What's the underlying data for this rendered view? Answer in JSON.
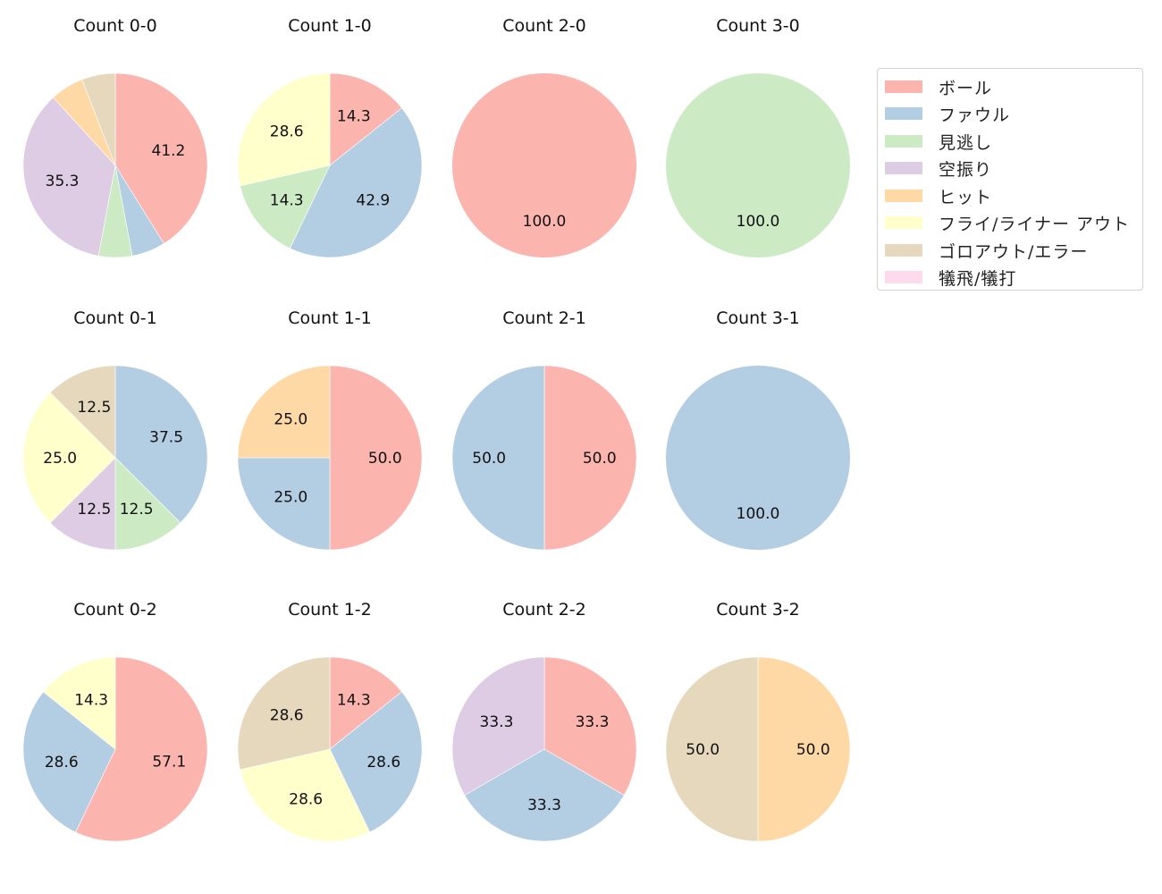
{
  "chart_data": {
    "type": "pie",
    "title": "",
    "legend": {
      "position": "upper right",
      "entries": [
        "ボール",
        "ファウル",
        "見逃し",
        "空振り",
        "ヒット",
        "フライ/ライナー アウト",
        "ゴロアウト/エラー",
        "犠飛/犠打"
      ],
      "colors": [
        "#fbb4ae",
        "#b3cde3",
        "#ccebc5",
        "#decbe4",
        "#fed9a6",
        "#ffffcc",
        "#e5d8bd",
        "#fddaec"
      ]
    },
    "categories": [
      "ボール",
      "ファウル",
      "見逃し",
      "空振り",
      "ヒット",
      "フライ/ライナー アウト",
      "ゴロアウト/エラー",
      "犠飛/犠打"
    ],
    "subplots": [
      {
        "title": "Count 0-0",
        "values": [
          41.2,
          5.9,
          5.9,
          35.3,
          5.9,
          0,
          5.9,
          0
        ],
        "labels": [
          "41.2",
          "",
          "",
          "35.3",
          "",
          "",
          "",
          ""
        ]
      },
      {
        "title": "Count 1-0",
        "values": [
          14.3,
          42.9,
          14.3,
          0,
          0,
          28.6,
          0,
          0
        ],
        "labels": [
          "14.3",
          "42.9",
          "14.3",
          "",
          "",
          "28.6",
          "",
          ""
        ]
      },
      {
        "title": "Count 2-0",
        "values": [
          100.0,
          0,
          0,
          0,
          0,
          0,
          0,
          0
        ],
        "labels": [
          "100.0",
          "",
          "",
          "",
          "",
          "",
          "",
          ""
        ]
      },
      {
        "title": "Count 3-0",
        "values": [
          0,
          0,
          100.0,
          0,
          0,
          0,
          0,
          0
        ],
        "labels": [
          "",
          "",
          "100.0",
          "",
          "",
          "",
          "",
          ""
        ]
      },
      {
        "title": "Count 0-1",
        "values": [
          0,
          37.5,
          12.5,
          12.5,
          0,
          25.0,
          12.5,
          0
        ],
        "labels": [
          "",
          "37.5",
          "12.5",
          "12.5",
          "",
          "25.0",
          "12.5",
          ""
        ]
      },
      {
        "title": "Count 1-1",
        "values": [
          50.0,
          25.0,
          0,
          0,
          25.0,
          0,
          0,
          0
        ],
        "labels": [
          "50.0",
          "25.0",
          "",
          "",
          "25.0",
          "",
          "",
          ""
        ]
      },
      {
        "title": "Count 2-1",
        "values": [
          50.0,
          50.0,
          0,
          0,
          0,
          0,
          0,
          0
        ],
        "labels": [
          "50.0",
          "50.0",
          "",
          "",
          "",
          "",
          "",
          ""
        ]
      },
      {
        "title": "Count 3-1",
        "values": [
          0,
          100.0,
          0,
          0,
          0,
          0,
          0,
          0
        ],
        "labels": [
          "",
          "100.0",
          "",
          "",
          "",
          "",
          "",
          ""
        ]
      },
      {
        "title": "Count 0-2",
        "values": [
          57.1,
          28.6,
          0,
          0,
          0,
          14.3,
          0,
          0
        ],
        "labels": [
          "57.1",
          "28.6",
          "",
          "",
          "",
          "14.3",
          "",
          ""
        ]
      },
      {
        "title": "Count 1-2",
        "values": [
          14.3,
          28.6,
          0,
          0,
          0,
          28.6,
          28.6,
          0
        ],
        "labels": [
          "14.3",
          "28.6",
          "",
          "",
          "",
          "28.6",
          "28.6",
          ""
        ]
      },
      {
        "title": "Count 2-2",
        "values": [
          33.3,
          33.3,
          0,
          33.3,
          0,
          0,
          0,
          0
        ],
        "labels": [
          "33.3",
          "33.3",
          "",
          "33.3",
          "",
          "",
          "",
          ""
        ]
      },
      {
        "title": "Count 3-2",
        "values": [
          0,
          0,
          0,
          0,
          50.0,
          0,
          50.0,
          0
        ],
        "labels": [
          "",
          "",
          "",
          "",
          "50.0",
          "",
          "50.0",
          ""
        ]
      }
    ],
    "layout": {
      "rows": 3,
      "cols": 4,
      "start_angle": 90,
      "direction": "clockwise",
      "grid": false
    }
  }
}
